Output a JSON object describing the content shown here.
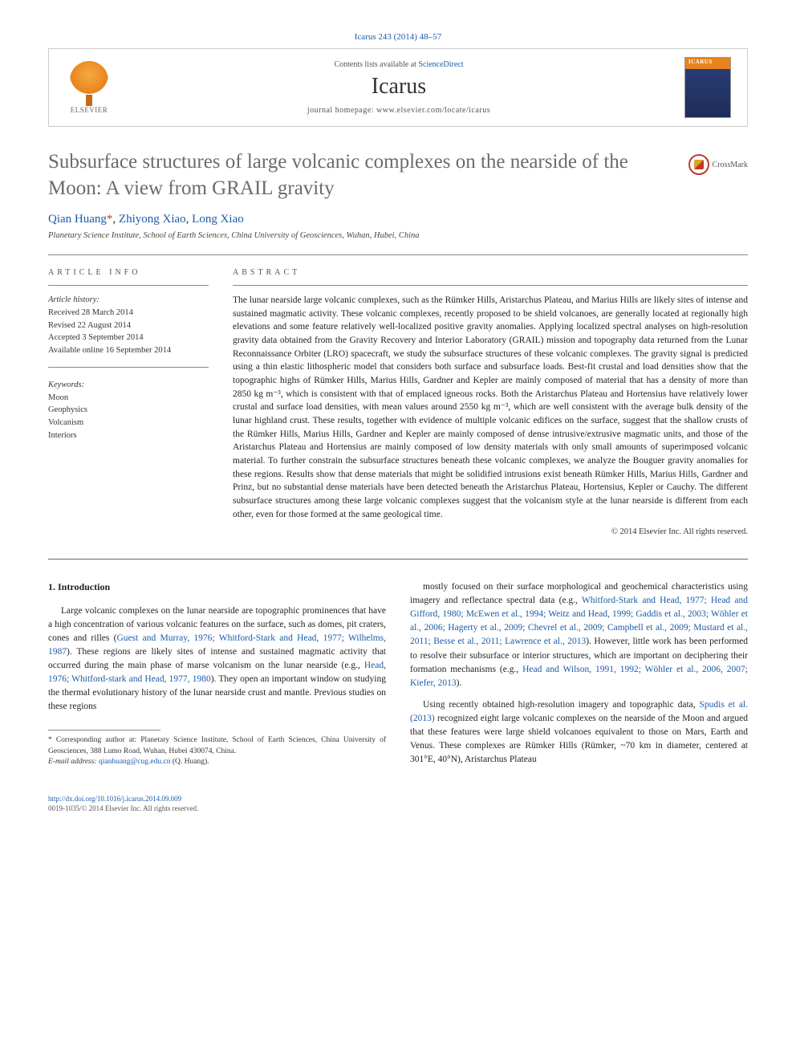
{
  "header": {
    "citation": "Icarus 243 (2014) 48–57",
    "contents_prefix": "Contents lists available at ",
    "contents_link": "ScienceDirect",
    "journal": "Icarus",
    "homepage": "journal homepage: www.elsevier.com/locate/icarus",
    "publisher_name": "ELSEVIER",
    "cover_label": "ICARUS"
  },
  "crossmark": "CrossMark",
  "title": "Subsurface structures of large volcanic complexes on the nearside of the Moon: A view from GRAIL gravity",
  "authors": {
    "a1": "Qian Huang",
    "star": "*",
    "sep1": ", ",
    "a2": "Zhiyong Xiao",
    "sep2": ", ",
    "a3": "Long Xiao"
  },
  "affiliation": "Planetary Science Institute, School of Earth Sciences, China University of Geosciences, Wuhan, Hubei, China",
  "labels": {
    "article_info": "ARTICLE INFO",
    "abstract": "ABSTRACT"
  },
  "article_info": {
    "history_label": "Article history:",
    "received": "Received 28 March 2014",
    "revised": "Revised 22 August 2014",
    "accepted": "Accepted 3 September 2014",
    "online": "Available online 16 September 2014",
    "keywords_label": "Keywords:",
    "kw1": "Moon",
    "kw2": "Geophysics",
    "kw3": "Volcanism",
    "kw4": "Interiors"
  },
  "abstract": "The lunar nearside large volcanic complexes, such as the Rümker Hills, Aristarchus Plateau, and Marius Hills are likely sites of intense and sustained magmatic activity. These volcanic complexes, recently proposed to be shield volcanoes, are generally located at regionally high elevations and some feature relatively well-localized positive gravity anomalies. Applying localized spectral analyses on high-resolution gravity data obtained from the Gravity Recovery and Interior Laboratory (GRAIL) mission and topography data returned from the Lunar Reconnaissance Orbiter (LRO) spacecraft, we study the subsurface structures of these volcanic complexes. The gravity signal is predicted using a thin elastic lithospheric model that considers both surface and subsurface loads. Best-fit crustal and load densities show that the topographic highs of Rümker Hills, Marius Hills, Gardner and Kepler are mainly composed of material that has a density of more than 2850 kg m⁻³, which is consistent with that of emplaced igneous rocks. Both the Aristarchus Plateau and Hortensius have relatively lower crustal and surface load densities, with mean values around 2550 kg m⁻³, which are well consistent with the average bulk density of the lunar highland crust. These results, together with evidence of multiple volcanic edifices on the surface, suggest that the shallow crusts of the Rümker Hills, Marius Hills, Gardner and Kepler are mainly composed of dense intrusive/extrusive magmatic units, and those of the Aristarchus Plateau and Hortensius are mainly composed of low density materials with only small amounts of superimposed volcanic material. To further constrain the subsurface structures beneath these volcanic complexes, we analyze the Bouguer gravity anomalies for these regions. Results show that dense materials that might be solidified intrusions exist beneath Rümker Hills, Marius Hills, Gardner and Prinz, but no substantial dense materials have been detected beneath the Aristarchus Plateau, Hortensius, Kepler or Cauchy. The different subsurface structures among these large volcanic complexes suggest that the volcanism style at the lunar nearside is different from each other, even for those formed at the same geological time.",
  "copyright": "© 2014 Elsevier Inc. All rights reserved.",
  "body": {
    "section_heading": "1. Introduction",
    "p1a": "Large volcanic complexes on the lunar nearside are topographic prominences that have a high concentration of various volcanic features on the surface, such as domes, pit craters, cones and rilles (",
    "p1_cite1": "Guest and Murray, 1976; Whitford-Stark and Head, 1977; Wilhelms, 1987",
    "p1b": "). These regions are likely sites of intense and sustained magmatic activity that occurred during the main phase of marse volcanism on the lunar nearside (e.g., ",
    "p1_cite2": "Head, 1976; Whitford-stark and Head, 1977, 1980",
    "p1c": "). They open an important window on studying the thermal evolutionary history of the lunar nearside crust and mantle. Previous studies on these regions",
    "p2a": "mostly focused on their surface morphological and geochemical characteristics using imagery and reflectance spectral data (e.g., ",
    "p2_cite1": "Whitford-Stark and Head, 1977; Head and Gifford, 1980; McEwen et al., 1994; Weitz and Head, 1999; Gaddis et al., 2003; Wöhler et al., 2006; Hagerty et al., 2009; Chevrel et al., 2009; Campbell et al., 2009; Mustard et al., 2011; Besse et al., 2011; Lawrence et al., 2013",
    "p2b": "). However, little work has been performed to resolve their subsurface or interior structures, which are important on deciphering their formation mechanisms (e.g., ",
    "p2_cite2": "Head and Wilson, 1991, 1992; Wöhler et al., 2006, 2007; Kiefer, 2013",
    "p2c": ").",
    "p3a": "Using recently obtained high-resolution imagery and topographic data, ",
    "p3_cite1": "Spudis et al. (2013)",
    "p3b": " recognized eight large volcanic complexes on the nearside of the Moon and argued that these features were large shield volcanoes equivalent to those on Mars, Earth and Venus. These complexes are Rümker Hills (Rümker, ~70 km in diameter, centered at 301°E, 40°N), Aristarchus Plateau"
  },
  "footnote": {
    "star": "*",
    "corresp": " Corresponding author at: Planetary Science Institute, School of Earth Sciences, China University of Geosciences, 388 Lumo Road, Wuhan, Hubei 430074, China.",
    "email_label": "E-mail address: ",
    "email": "qianhuang@cug.edu.cn",
    "email_suffix": " (Q. Huang)."
  },
  "footer": {
    "doi": "http://dx.doi.org/10.1016/j.icarus.2014.09.009",
    "issn_line": "0019-1035/© 2014 Elsevier Inc. All rights reserved."
  },
  "colors": {
    "link": "#1a5ca8",
    "title_gray": "#6b6b6b",
    "elsevier_orange": "#e8831e",
    "crossmark_red": "#c0392b"
  }
}
